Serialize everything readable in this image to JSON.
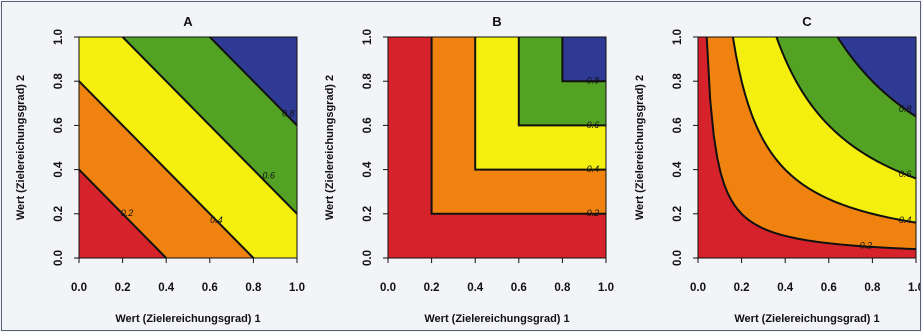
{
  "figure": {
    "colors": {
      "levels": [
        "#d6232b",
        "#f0830f",
        "#f4ef0e",
        "#54a224",
        "#2e3a93"
      ],
      "contour_line": "#111111",
      "frame": "#5a5f78",
      "background": "#f3f4f8"
    }
  },
  "chart_data": [
    {
      "type": "contour",
      "title": "A",
      "xlabel": "Wert (Zielereichungsgrad) 1",
      "ylabel": "Wert (Zielereichungsgrad) 2",
      "xlim": [
        0,
        1
      ],
      "ylim": [
        0,
        1
      ],
      "xticks": [
        "0.0",
        "0.2",
        "0.4",
        "0.6",
        "0.8",
        "1.0"
      ],
      "yticks": [
        "0.0",
        "0.2",
        "0.4",
        "0.6",
        "0.8",
        "1.0"
      ],
      "function": "additive (x + y) / 2",
      "levels": [
        0.2,
        0.4,
        0.6,
        0.8
      ],
      "contour_labels": [
        "0.2",
        "0.4",
        "0.6",
        "0.8"
      ]
    },
    {
      "type": "contour",
      "title": "B",
      "xlabel": "Wert (Zielereichungsgrad) 1",
      "ylabel": "Wert (Zielereichungsgrad) 2",
      "xlim": [
        0,
        1
      ],
      "ylim": [
        0,
        1
      ],
      "xticks": [
        "0.0",
        "0.2",
        "0.4",
        "0.6",
        "0.8",
        "1.0"
      ],
      "yticks": [
        "0.0",
        "0.2",
        "0.4",
        "0.6",
        "0.8",
        "1.0"
      ],
      "function": "min(x, y)",
      "levels": [
        0.2,
        0.4,
        0.6,
        0.8
      ],
      "contour_labels": [
        "0.2",
        "0.4",
        "0.6",
        "0.8"
      ]
    },
    {
      "type": "contour",
      "title": "C",
      "xlabel": "Wert (Zielereichungsgrad) 1",
      "ylabel": "Wert (Zielereichungsgrad) 2",
      "xlim": [
        0,
        1
      ],
      "ylim": [
        0,
        1
      ],
      "xticks": [
        "0.0",
        "0.2",
        "0.4",
        "0.6",
        "0.8",
        "1.0"
      ],
      "yticks": [
        "0.0",
        "0.2",
        "0.4",
        "0.6",
        "0.8",
        "1.0"
      ],
      "function": "sqrt(x * y)",
      "levels": [
        0.2,
        0.4,
        0.6,
        0.8
      ],
      "contour_labels": [
        "0.2",
        "0.4",
        "0.6",
        "0.8"
      ]
    }
  ]
}
